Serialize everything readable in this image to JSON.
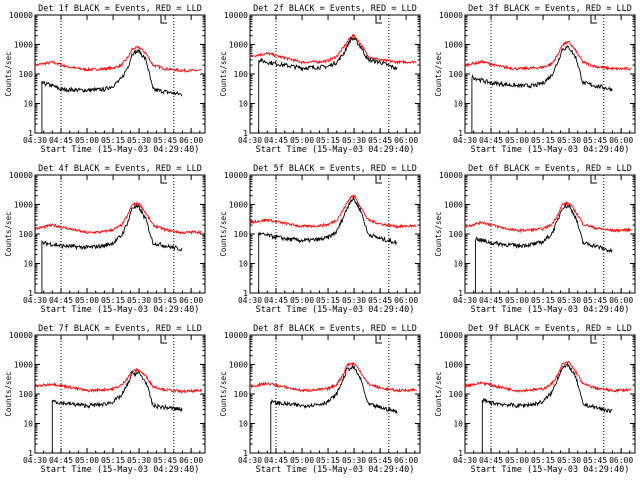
{
  "figure": {
    "xlabel": "Start Time (15-May-03 04:29:40)",
    "ylabel": "Counts/sec",
    "x_tick_labels": [
      "04:30",
      "04:45",
      "05:00",
      "05:15",
      "05:30",
      "05:45",
      "06:00"
    ],
    "y_tick_labels": [
      "1",
      "10",
      "100",
      "1000",
      "10000"
    ],
    "colors": {
      "events": "#000000",
      "lld": "#ff0000",
      "axes": "#000000",
      "background": "#ffffff"
    }
  },
  "chart_data": [
    {
      "type": "line",
      "title": "Det 1f BLACK = Events, RED = LLD",
      "xlabel": "Start Time (15-May-03 04:29:40)",
      "ylabel": "Counts/sec",
      "yscale": "log",
      "ylim": [
        1,
        10000
      ],
      "x_time_range": [
        "04:30",
        "06:08"
      ],
      "grid": false,
      "vlines": [
        "04:45",
        "05:50"
      ],
      "series": [
        {
          "name": "Events",
          "color": "#000000",
          "x": [
            "04:34",
            "04:40",
            "04:45",
            "05:00",
            "05:10",
            "05:15",
            "05:20",
            "05:24",
            "05:26",
            "05:30",
            "05:34",
            "05:38",
            "05:45",
            "05:55"
          ],
          "y": [
            50,
            40,
            30,
            28,
            30,
            40,
            70,
            200,
            500,
            600,
            300,
            30,
            25,
            20
          ]
        },
        {
          "name": "LLD",
          "color": "#ff0000",
          "x": [
            "04:30",
            "04:40",
            "04:50",
            "05:00",
            "05:10",
            "05:15",
            "05:20",
            "05:24",
            "05:26",
            "05:30",
            "05:34",
            "05:38",
            "05:45",
            "05:55",
            "06:06"
          ],
          "y": [
            200,
            250,
            170,
            140,
            150,
            160,
            200,
            400,
            700,
            800,
            500,
            200,
            150,
            130,
            130
          ]
        }
      ]
    },
    {
      "type": "line",
      "title": "Det 2f BLACK = Events, RED = LLD",
      "xlabel": "Start Time (15-May-03 04:29:40)",
      "ylabel": "Counts/sec",
      "yscale": "log",
      "ylim": [
        1,
        10000
      ],
      "x_time_range": [
        "04:30",
        "06:08"
      ],
      "grid": false,
      "vlines": [
        "04:45",
        "05:50"
      ],
      "series": [
        {
          "name": "Events",
          "color": "#000000",
          "x": [
            "04:35",
            "04:40",
            "04:50",
            "05:00",
            "05:10",
            "05:15",
            "05:20",
            "05:24",
            "05:28",
            "05:30",
            "05:34",
            "05:38",
            "05:45",
            "05:55"
          ],
          "y": [
            300,
            250,
            200,
            160,
            170,
            180,
            250,
            500,
            1500,
            1600,
            800,
            300,
            250,
            150
          ]
        },
        {
          "name": "LLD",
          "color": "#ff0000",
          "x": [
            "04:30",
            "04:40",
            "04:50",
            "05:00",
            "05:10",
            "05:15",
            "05:20",
            "05:24",
            "05:28",
            "05:30",
            "05:34",
            "05:38",
            "05:45",
            "05:55",
            "06:06"
          ],
          "y": [
            400,
            500,
            350,
            250,
            260,
            280,
            400,
            800,
            1800,
            2000,
            1000,
            400,
            300,
            250,
            260
          ]
        }
      ]
    },
    {
      "type": "line",
      "title": "Det 3f BLACK = Events, RED = LLD",
      "xlabel": "Start Time (15-May-03 04:29:40)",
      "ylabel": "Counts/sec",
      "yscale": "log",
      "ylim": [
        1,
        10000
      ],
      "x_time_range": [
        "04:30",
        "06:08"
      ],
      "grid": false,
      "vlines": [
        "04:45",
        "05:50"
      ],
      "series": [
        {
          "name": "Events",
          "color": "#000000",
          "x": [
            "04:34",
            "04:40",
            "04:45",
            "05:00",
            "05:10",
            "05:15",
            "05:20",
            "05:24",
            "05:26",
            "05:30",
            "05:34",
            "05:38",
            "05:45",
            "05:55"
          ],
          "y": [
            80,
            60,
            50,
            40,
            40,
            50,
            90,
            300,
            700,
            800,
            350,
            50,
            40,
            30
          ]
        },
        {
          "name": "LLD",
          "color": "#ff0000",
          "x": [
            "04:30",
            "04:40",
            "04:50",
            "05:00",
            "05:10",
            "05:15",
            "05:20",
            "05:24",
            "05:26",
            "05:30",
            "05:34",
            "05:38",
            "05:45",
            "05:55",
            "06:06"
          ],
          "y": [
            200,
            260,
            180,
            150,
            160,
            170,
            220,
            500,
            1000,
            1200,
            600,
            250,
            180,
            150,
            150
          ]
        }
      ]
    },
    {
      "type": "line",
      "title": "Det 4f BLACK = Events, RED = LLD",
      "xlabel": "Start Time (15-May-03 04:29:40)",
      "ylabel": "Counts/sec",
      "yscale": "log",
      "ylim": [
        1,
        10000
      ],
      "x_time_range": [
        "04:30",
        "06:08"
      ],
      "grid": false,
      "vlines": [
        "04:45",
        "05:50"
      ],
      "series": [
        {
          "name": "Events",
          "color": "#000000",
          "x": [
            "04:34",
            "04:40",
            "04:45",
            "05:00",
            "05:10",
            "05:15",
            "05:20",
            "05:24",
            "05:26",
            "05:30",
            "05:34",
            "05:38",
            "05:45",
            "05:55"
          ],
          "y": [
            50,
            45,
            40,
            35,
            40,
            50,
            90,
            300,
            800,
            800,
            300,
            50,
            40,
            30
          ]
        },
        {
          "name": "LLD",
          "color": "#ff0000",
          "x": [
            "04:30",
            "04:40",
            "04:50",
            "05:00",
            "05:10",
            "05:15",
            "05:20",
            "05:24",
            "05:26",
            "05:30",
            "05:34",
            "05:38",
            "05:45",
            "05:55",
            "06:06"
          ],
          "y": [
            150,
            200,
            150,
            110,
            120,
            140,
            200,
            500,
            1000,
            1100,
            500,
            200,
            140,
            110,
            120
          ]
        }
      ]
    },
    {
      "type": "line",
      "title": "Det 5f BLACK = Events, RED = LLD",
      "xlabel": "Start Time (15-May-03 04:29:40)",
      "ylabel": "Counts/sec",
      "yscale": "log",
      "ylim": [
        1,
        10000
      ],
      "x_time_range": [
        "04:30",
        "06:08"
      ],
      "grid": false,
      "vlines": [
        "04:45",
        "05:50"
      ],
      "series": [
        {
          "name": "Events",
          "color": "#000000",
          "x": [
            "04:35",
            "04:40",
            "04:50",
            "05:00",
            "05:10",
            "05:15",
            "05:20",
            "05:24",
            "05:28",
            "05:30",
            "05:34",
            "05:38",
            "05:45",
            "05:55"
          ],
          "y": [
            100,
            90,
            70,
            60,
            65,
            75,
            120,
            400,
            1400,
            1500,
            600,
            100,
            70,
            50
          ]
        },
        {
          "name": "LLD",
          "color": "#ff0000",
          "x": [
            "04:30",
            "04:40",
            "04:50",
            "05:00",
            "05:10",
            "05:15",
            "05:20",
            "05:24",
            "05:28",
            "05:30",
            "05:34",
            "05:38",
            "05:45",
            "05:55",
            "06:06"
          ],
          "y": [
            250,
            300,
            230,
            180,
            190,
            210,
            300,
            700,
            1800,
            2000,
            800,
            300,
            220,
            180,
            190
          ]
        }
      ]
    },
    {
      "type": "line",
      "title": "Det 6f BLACK = Events, RED = LLD",
      "xlabel": "Start Time (15-May-03 04:29:40)",
      "ylabel": "Counts/sec",
      "yscale": "log",
      "ylim": [
        1,
        10000
      ],
      "x_time_range": [
        "04:30",
        "06:08"
      ],
      "grid": false,
      "vlines": [
        "04:45",
        "05:50"
      ],
      "series": [
        {
          "name": "Events",
          "color": "#000000",
          "x": [
            "04:36",
            "04:40",
            "04:45",
            "05:00",
            "05:10",
            "05:15",
            "05:20",
            "05:24",
            "05:26",
            "05:30",
            "05:34",
            "05:38",
            "05:45",
            "05:55"
          ],
          "y": [
            70,
            60,
            50,
            40,
            45,
            55,
            100,
            350,
            800,
            900,
            350,
            50,
            40,
            25
          ]
        },
        {
          "name": "LLD",
          "color": "#ff0000",
          "x": [
            "04:30",
            "04:40",
            "04:50",
            "05:00",
            "05:10",
            "05:15",
            "05:20",
            "05:24",
            "05:26",
            "05:30",
            "05:34",
            "05:38",
            "05:45",
            "05:55",
            "06:06"
          ],
          "y": [
            180,
            250,
            170,
            130,
            140,
            150,
            210,
            500,
            1000,
            1100,
            550,
            220,
            160,
            130,
            140
          ]
        }
      ]
    },
    {
      "type": "line",
      "title": "Det 7f BLACK = Events, RED = LLD",
      "xlabel": "Start Time (15-May-03 04:29:40)",
      "ylabel": "Counts/sec",
      "yscale": "log",
      "ylim": [
        1,
        10000
      ],
      "x_time_range": [
        "04:30",
        "06:08"
      ],
      "grid": false,
      "vlines": [
        "04:45",
        "05:50"
      ],
      "series": [
        {
          "name": "Events",
          "color": "#000000",
          "x": [
            "04:40",
            "04:45",
            "05:00",
            "05:10",
            "05:15",
            "05:20",
            "05:24",
            "05:26",
            "05:30",
            "05:34",
            "05:38",
            "05:45",
            "05:55"
          ],
          "y": [
            60,
            50,
            40,
            45,
            55,
            90,
            250,
            500,
            500,
            250,
            40,
            35,
            30
          ]
        },
        {
          "name": "LLD",
          "color": "#ff0000",
          "x": [
            "04:30",
            "04:40",
            "04:50",
            "05:00",
            "05:10",
            "05:15",
            "05:20",
            "05:24",
            "05:26",
            "05:30",
            "05:34",
            "05:38",
            "05:45",
            "05:55",
            "06:06"
          ],
          "y": [
            180,
            220,
            170,
            130,
            140,
            150,
            200,
            400,
            600,
            650,
            400,
            180,
            140,
            120,
            130
          ]
        }
      ]
    },
    {
      "type": "line",
      "title": "Det 8f BLACK = Events, RED = LLD",
      "xlabel": "Start Time (15-May-03 04:29:40)",
      "ylabel": "Counts/sec",
      "yscale": "log",
      "ylim": [
        1,
        10000
      ],
      "x_time_range": [
        "04:30",
        "06:08"
      ],
      "grid": false,
      "vlines": [
        "04:45",
        "05:50"
      ],
      "series": [
        {
          "name": "Events",
          "color": "#000000",
          "x": [
            "04:42",
            "04:45",
            "05:00",
            "05:10",
            "05:15",
            "05:20",
            "05:24",
            "05:26",
            "05:30",
            "05:34",
            "05:38",
            "05:45",
            "05:55"
          ],
          "y": [
            55,
            50,
            40,
            45,
            55,
            100,
            350,
            700,
            800,
            300,
            45,
            35,
            25
          ]
        },
        {
          "name": "LLD",
          "color": "#ff0000",
          "x": [
            "04:30",
            "04:40",
            "04:50",
            "05:00",
            "05:10",
            "05:15",
            "05:20",
            "05:24",
            "05:26",
            "05:30",
            "05:34",
            "05:38",
            "05:45",
            "05:55",
            "06:06"
          ],
          "y": [
            180,
            230,
            170,
            130,
            140,
            150,
            210,
            500,
            1000,
            1100,
            550,
            220,
            160,
            130,
            140
          ]
        }
      ]
    },
    {
      "type": "line",
      "title": "Det 9f BLACK = Events, RED = LLD",
      "xlabel": "Start Time (15-May-03 04:29:40)",
      "ylabel": "Counts/sec",
      "yscale": "log",
      "ylim": [
        1,
        10000
      ],
      "x_time_range": [
        "04:30",
        "06:08"
      ],
      "grid": false,
      "vlines": [
        "04:45",
        "05:50"
      ],
      "series": [
        {
          "name": "Events",
          "color": "#000000",
          "x": [
            "04:40",
            "04:45",
            "05:00",
            "05:10",
            "05:15",
            "05:20",
            "05:24",
            "05:26",
            "05:30",
            "05:34",
            "05:38",
            "05:45",
            "05:55"
          ],
          "y": [
            60,
            50,
            40,
            45,
            55,
            110,
            400,
            800,
            900,
            350,
            45,
            35,
            25
          ]
        },
        {
          "name": "LLD",
          "color": "#ff0000",
          "x": [
            "04:30",
            "04:40",
            "04:50",
            "05:00",
            "05:10",
            "05:15",
            "05:20",
            "05:24",
            "05:26",
            "05:30",
            "05:34",
            "05:38",
            "05:45",
            "05:55",
            "06:06"
          ],
          "y": [
            190,
            240,
            170,
            130,
            140,
            150,
            220,
            500,
            1000,
            1200,
            550,
            220,
            160,
            130,
            140
          ]
        }
      ]
    }
  ]
}
